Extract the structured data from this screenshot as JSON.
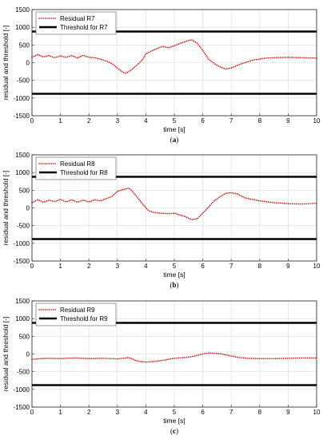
{
  "chart_data": [
    {
      "type": "line",
      "caption_letter": "a",
      "xlabel": "time [s]",
      "ylabel": "residual and threshold [-]",
      "xlim": [
        0,
        10
      ],
      "ylim": [
        -1500,
        1500
      ],
      "xticks": [
        0,
        1,
        2,
        3,
        4,
        5,
        6,
        7,
        8,
        9,
        10
      ],
      "yticks": [
        -1500,
        -1000,
        -500,
        0,
        500,
        1000,
        1500
      ],
      "grid": true,
      "legend_position": "top-left",
      "series": [
        {
          "name": "Residual R7",
          "style": "dotted",
          "color": "#e00000",
          "x": [
            0,
            0.2,
            0.4,
            0.6,
            0.8,
            1.0,
            1.2,
            1.4,
            1.6,
            1.8,
            2.0,
            2.2,
            2.4,
            2.6,
            2.8,
            3.0,
            3.2,
            3.3,
            3.5,
            3.7,
            3.9,
            4.0,
            4.2,
            4.4,
            4.6,
            4.8,
            5.0,
            5.2,
            5.4,
            5.6,
            5.8,
            6.0,
            6.2,
            6.4,
            6.6,
            6.8,
            7.0,
            7.2,
            7.4,
            7.6,
            7.8,
            8.0,
            8.2,
            8.5,
            9.0,
            9.5,
            10.0
          ],
          "y": [
            150,
            230,
            160,
            200,
            140,
            190,
            150,
            200,
            130,
            210,
            150,
            140,
            100,
            50,
            -20,
            -150,
            -280,
            -300,
            -200,
            -60,
            100,
            250,
            330,
            400,
            460,
            420,
            480,
            540,
            600,
            650,
            550,
            350,
            100,
            -20,
            -120,
            -180,
            -150,
            -80,
            -20,
            30,
            80,
            100,
            130,
            140,
            150,
            140,
            130
          ]
        },
        {
          "name": "Threshold for R7",
          "style": "solid",
          "color": "#000000",
          "x": [
            0,
            10
          ],
          "y": [
            880,
            880
          ]
        },
        {
          "name": "",
          "style": "solid",
          "color": "#000000",
          "x": [
            0,
            10
          ],
          "y": [
            -880,
            -880
          ]
        }
      ]
    },
    {
      "type": "line",
      "caption_letter": "b",
      "xlabel": "time [s]",
      "ylabel": "residual and threshold [-]",
      "xlim": [
        0,
        10
      ],
      "ylim": [
        -1500,
        1500
      ],
      "xticks": [
        0,
        1,
        2,
        3,
        4,
        5,
        6,
        7,
        8,
        9,
        10
      ],
      "yticks": [
        -1500,
        -1000,
        -500,
        0,
        500,
        1000,
        1500
      ],
      "grid": true,
      "legend_position": "top-left",
      "series": [
        {
          "name": "Residual R8",
          "style": "dotted",
          "color": "#e00000",
          "x": [
            0,
            0.2,
            0.4,
            0.6,
            0.8,
            1.0,
            1.2,
            1.4,
            1.6,
            1.8,
            2.0,
            2.2,
            2.4,
            2.6,
            2.8,
            3.0,
            3.2,
            3.4,
            3.5,
            3.7,
            3.9,
            4.1,
            4.3,
            4.5,
            4.8,
            5.0,
            5.2,
            5.4,
            5.6,
            5.8,
            6.0,
            6.2,
            6.4,
            6.6,
            6.8,
            7.0,
            7.2,
            7.5,
            8.0,
            8.5,
            9.0,
            9.5,
            10.0
          ],
          "y": [
            150,
            230,
            160,
            220,
            180,
            240,
            170,
            230,
            160,
            220,
            170,
            230,
            200,
            260,
            320,
            470,
            520,
            560,
            500,
            300,
            100,
            -80,
            -130,
            -150,
            -160,
            -150,
            -200,
            -250,
            -330,
            -310,
            -150,
            20,
            200,
            310,
            410,
            430,
            400,
            280,
            200,
            150,
            120,
            110,
            130
          ]
        },
        {
          "name": "Threshold for R8",
          "style": "solid",
          "color": "#000000",
          "x": [
            0,
            10
          ],
          "y": [
            880,
            880
          ]
        },
        {
          "name": "",
          "style": "solid",
          "color": "#000000",
          "x": [
            0,
            10
          ],
          "y": [
            -880,
            -880
          ]
        }
      ]
    },
    {
      "type": "line",
      "caption_letter": "c",
      "xlabel": "time [s]",
      "ylabel": "residual and threshold [-]",
      "xlim": [
        0,
        10
      ],
      "ylim": [
        -1500,
        1500
      ],
      "xticks": [
        0,
        1,
        2,
        3,
        4,
        5,
        6,
        7,
        8,
        9,
        10
      ],
      "yticks": [
        -1500,
        -1000,
        -500,
        0,
        500,
        1000,
        1500
      ],
      "grid": true,
      "legend_position": "top-left",
      "series": [
        {
          "name": "Residual R9",
          "style": "dotted",
          "color": "#e00000",
          "x": [
            0,
            0.5,
            1.0,
            1.5,
            2.0,
            2.5,
            3.0,
            3.4,
            3.7,
            4.0,
            4.3,
            4.6,
            5.0,
            5.4,
            5.7,
            6.0,
            6.2,
            6.4,
            6.6,
            6.8,
            7.0,
            7.3,
            7.6,
            8.0,
            8.5,
            9.0,
            9.5,
            10.0
          ],
          "y": [
            -150,
            -120,
            -130,
            -110,
            -130,
            -120,
            -140,
            -100,
            -200,
            -230,
            -210,
            -180,
            -120,
            -100,
            -60,
            0,
            30,
            20,
            10,
            -20,
            -60,
            -100,
            -120,
            -130,
            -130,
            -120,
            -110,
            -110
          ]
        },
        {
          "name": "Threshold for R9",
          "style": "solid",
          "color": "#000000",
          "x": [
            0,
            10
          ],
          "y": [
            880,
            880
          ]
        },
        {
          "name": "",
          "style": "solid",
          "color": "#000000",
          "x": [
            0,
            10
          ],
          "y": [
            -880,
            -880
          ]
        }
      ]
    }
  ]
}
